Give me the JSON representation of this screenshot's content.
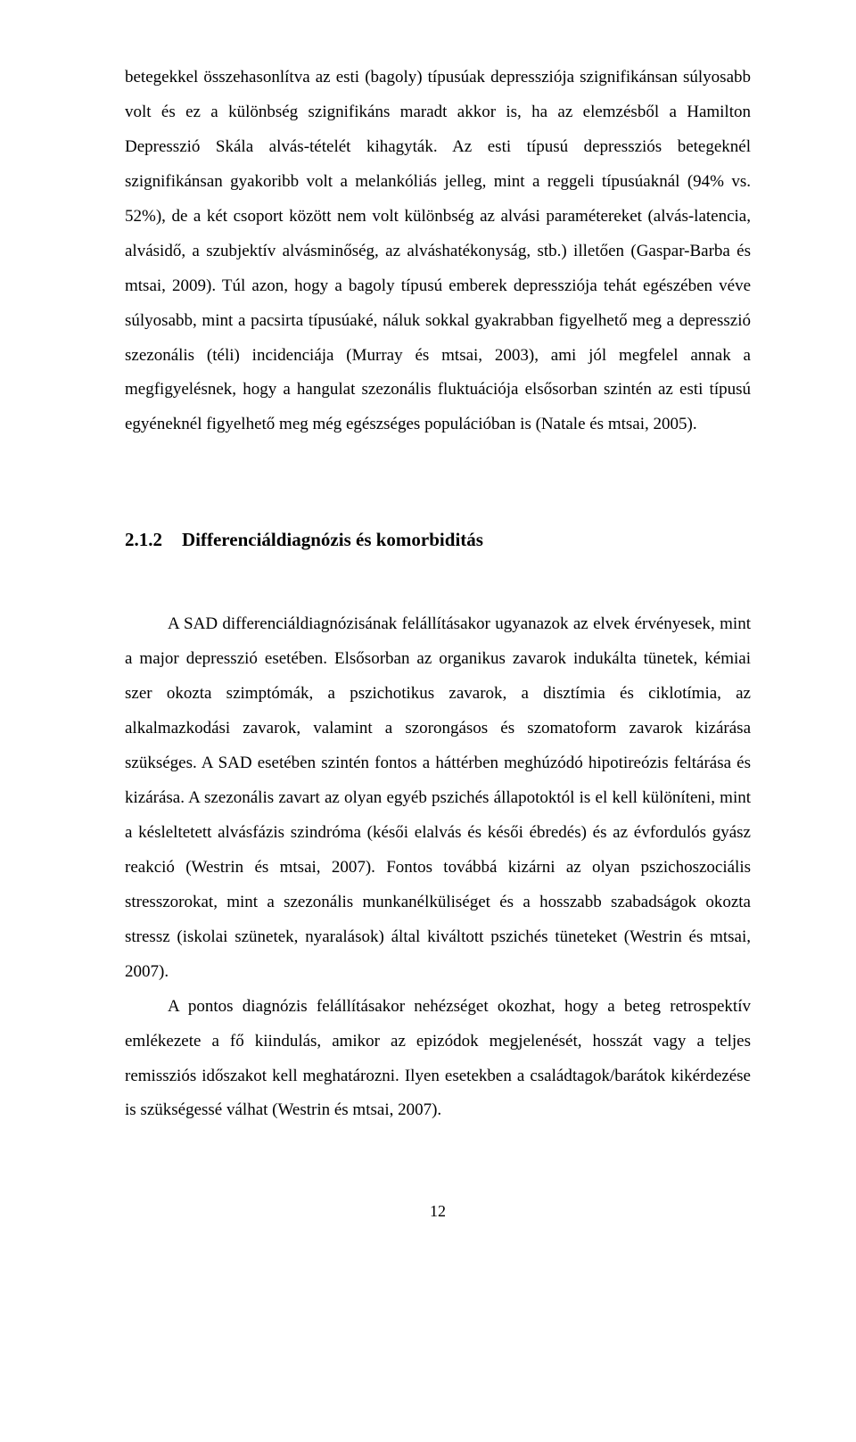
{
  "paragraph1": "betegekkel összehasonlítva az esti (bagoly) típusúak depressziója szignifikánsan súlyosabb volt és ez a különbség szignifikáns maradt akkor is, ha az elemzésből a Hamilton Depresszió Skála alvás-tételét kihagyták. Az esti típusú depressziós betegeknél szignifikánsan gyakoribb volt a melankóliás jelleg, mint a reggeli típusúaknál (94% vs. 52%), de a két csoport között nem volt különbség az alvási paramétereket (alvás-latencia, alvásidő, a szubjektív alvásminőség, az alváshatékonyság, stb.) illetően (Gaspar-Barba és mtsai, 2009). Túl azon, hogy a bagoly típusú emberek depressziója tehát egészében véve súlyosabb, mint a pacsirta típusúaké, náluk sokkal gyakrabban figyelhető meg a depresszió szezonális (téli) incidenciája (Murray és mtsai, 2003), ami jól megfelel annak a megfigyelésnek, hogy a hangulat szezonális fluktuációja elsősorban szintén az esti típusú egyéneknél figyelhető meg még egészséges populációban is (Natale és mtsai, 2005).",
  "heading_number": "2.1.2",
  "heading_title": "Differenciáldiagnózis és komorbiditás",
  "paragraph2": "A SAD differenciáldiagnózisának felállításakor ugyanazok az elvek érvényesek, mint a major depresszió esetében. Elsősorban az organikus zavarok indukálta tünetek, kémiai szer okozta szimptómák, a pszichotikus zavarok, a disztímia és ciklotímia, az alkalmazkodási zavarok, valamint a szorongásos és szomatoform zavarok kizárása szükséges. A SAD esetében szintén fontos a háttérben meghúzódó hipotireózis feltárása és kizárása. A szezonális zavart az olyan egyéb pszichés állapotoktól is el kell különíteni, mint a késleltetett alvásfázis szindróma (késői elalvás és késői ébredés) és az évfordulós gyász reakció (Westrin és mtsai, 2007). Fontos továbbá kizárni az olyan pszichoszociális stresszorokat, mint a szezonális munkanélküliséget és a hosszabb szabadságok okozta stressz (iskolai szünetek, nyaralások) által kiváltott pszichés tüneteket (Westrin és mtsai, 2007).",
  "paragraph3": "A pontos diagnózis felállításakor nehézséget okozhat, hogy a beteg retrospektív emlékezete a fő kiindulás, amikor az epizódok megjelenését, hosszát vagy a teljes remissziós időszakot kell meghatározni. Ilyen esetekben a családtagok/barátok kikérdezése is szükségessé válhat (Westrin és mtsai, 2007).",
  "page_number": "12"
}
